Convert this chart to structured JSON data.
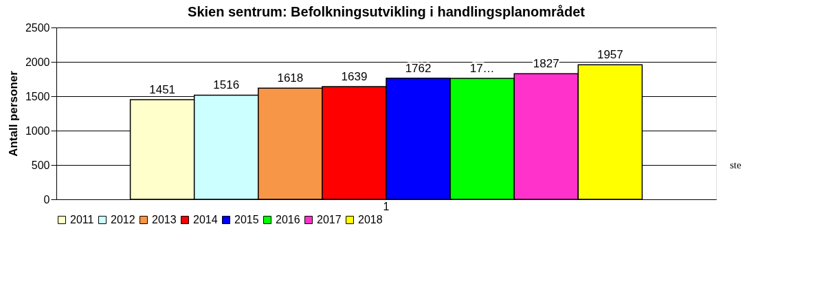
{
  "chart_data": {
    "type": "bar",
    "title": "Skien sentrum: Befolkningsutvikling i handlingsplanområdet",
    "ylabel": "Antall personer",
    "categories": [
      "1"
    ],
    "series": [
      {
        "name": "2011",
        "color": "#ffffcc",
        "values": [
          1451
        ],
        "value_labels": [
          "1451"
        ]
      },
      {
        "name": "2012",
        "color": "#ccffff",
        "values": [
          1516
        ],
        "value_labels": [
          "1516"
        ]
      },
      {
        "name": "2013",
        "color": "#f79646",
        "values": [
          1618
        ],
        "value_labels": [
          "1618"
        ]
      },
      {
        "name": "2014",
        "color": "#ff0000",
        "values": [
          1639
        ],
        "value_labels": [
          "1639"
        ]
      },
      {
        "name": "2015",
        "color": "#0000ff",
        "values": [
          1762
        ],
        "value_labels": [
          "1762"
        ]
      },
      {
        "name": "2016",
        "color": "#00ff00",
        "values": [
          1760
        ],
        "value_labels": [
          "17…"
        ]
      },
      {
        "name": "2017",
        "color": "#ff33cc",
        "values": [
          1827
        ],
        "value_labels": [
          "1827"
        ]
      },
      {
        "name": "2018",
        "color": "#ffff00",
        "values": [
          1957
        ],
        "value_labels": [
          "1957"
        ]
      }
    ],
    "ylim": [
      0,
      2500
    ],
    "yticks": [
      0,
      500,
      1000,
      1500,
      2000,
      2500
    ],
    "grid": "y",
    "legend": "bottom",
    "annotations": [
      "ste"
    ]
  }
}
